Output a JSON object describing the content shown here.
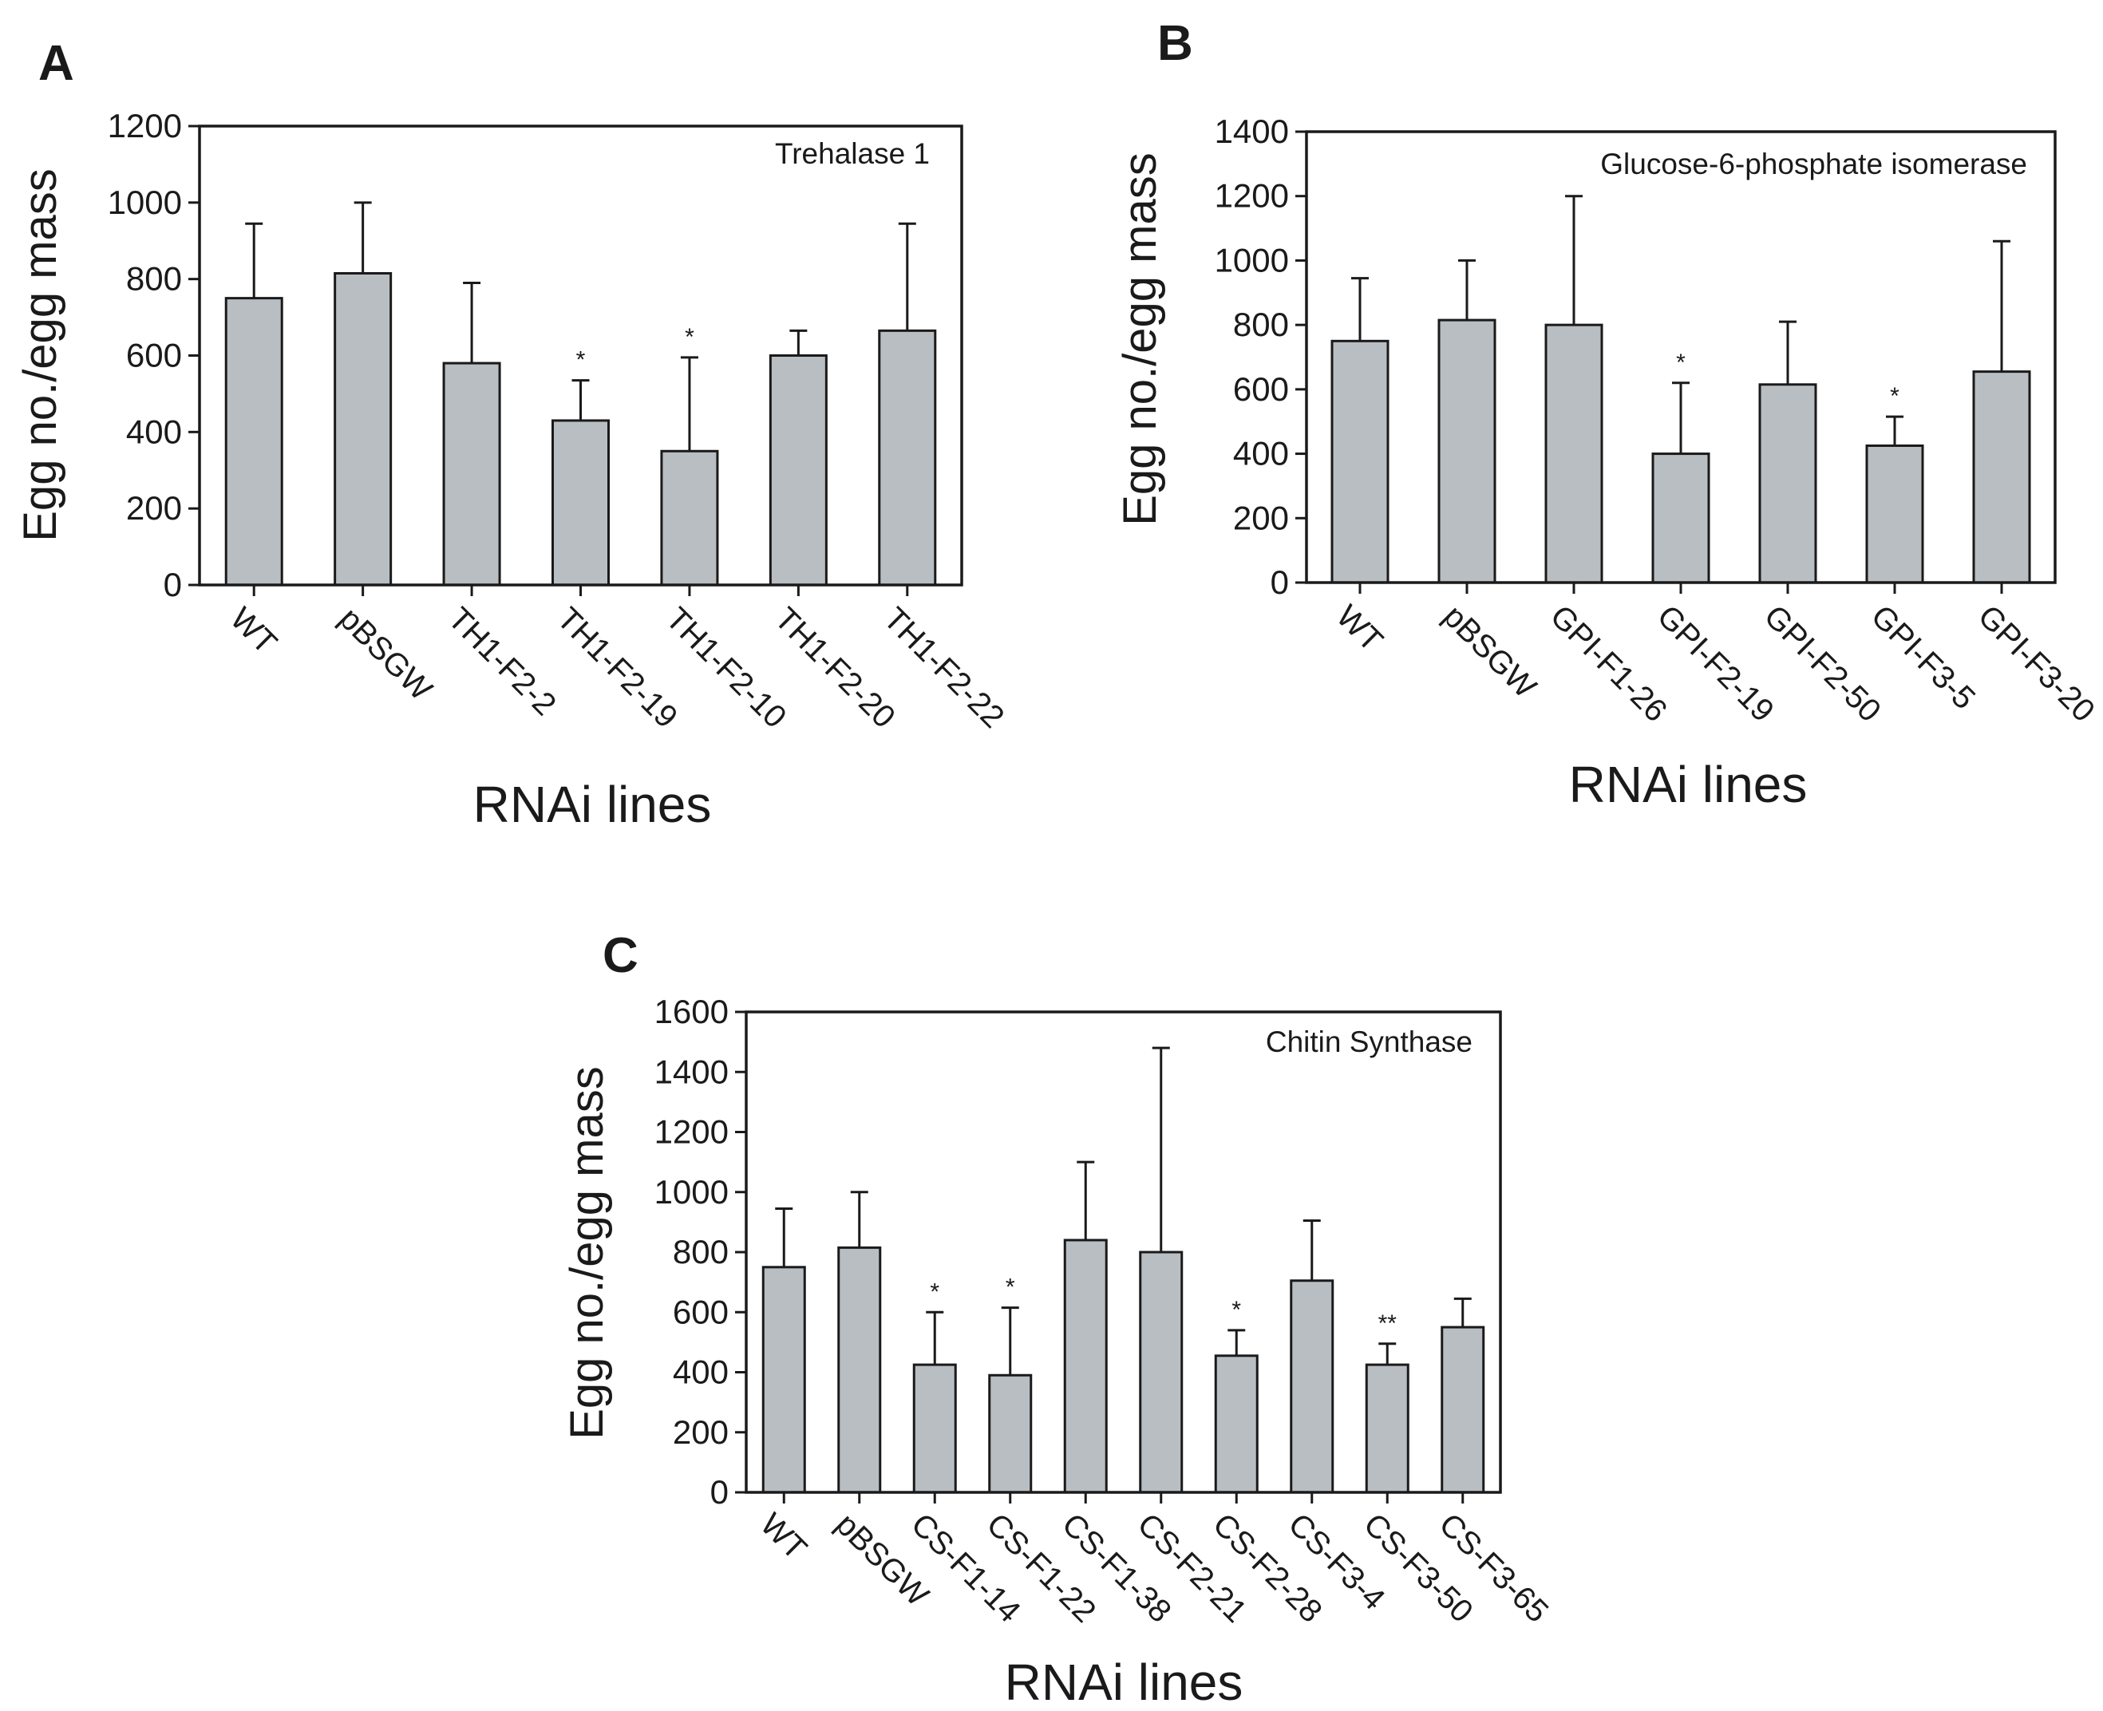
{
  "figure": {
    "x_axis_label": "RNAi lines",
    "y_axis_label": "Egg no./egg mass"
  },
  "chart_data": [
    {
      "panel": "A",
      "type": "bar",
      "title": "Trehalase 1",
      "xlabel": "RNAi lines",
      "ylabel": "Egg no./egg mass",
      "ylim": [
        0,
        1200
      ],
      "yticks": [
        0,
        200,
        400,
        600,
        800,
        1000,
        1200
      ],
      "categories": [
        "WT",
        "pBSGW",
        "TH1-F2-2",
        "TH1-F2-19",
        "TH1-F2-10",
        "TH1-F2-20",
        "TH1-F2-22"
      ],
      "values": [
        750,
        815,
        580,
        430,
        350,
        600,
        665
      ],
      "error_upper": [
        945,
        1000,
        790,
        535,
        595,
        665,
        945
      ],
      "significance": [
        "",
        "",
        "",
        "*",
        "*",
        "",
        ""
      ]
    },
    {
      "panel": "B",
      "type": "bar",
      "title": "Glucose-6-phosphate isomerase",
      "xlabel": "RNAi lines",
      "ylabel": "Egg no./egg mass",
      "ylim": [
        0,
        1400
      ],
      "yticks": [
        0,
        200,
        400,
        600,
        800,
        1000,
        1200,
        1400
      ],
      "categories": [
        "WT",
        "pBSGW",
        "GPI-F1-26",
        "GPI-F2-19",
        "GPI-F2-50",
        "GPI-F3-5",
        "GPI-F3-20"
      ],
      "values": [
        750,
        815,
        800,
        400,
        615,
        425,
        655
      ],
      "error_upper": [
        945,
        1000,
        1200,
        620,
        810,
        515,
        1060
      ],
      "significance": [
        "",
        "",
        "",
        "*",
        "",
        "*",
        ""
      ]
    },
    {
      "panel": "C",
      "type": "bar",
      "title": "Chitin Synthase",
      "xlabel": "RNAi lines",
      "ylabel": "Egg no./egg mass",
      "ylim": [
        0,
        1600
      ],
      "yticks": [
        0,
        200,
        400,
        600,
        800,
        1000,
        1200,
        1400,
        1600
      ],
      "categories": [
        "WT",
        "pBSGW",
        "CS-F1-14",
        "CS-F1-22",
        "CS-F1-38",
        "CS-F2-21",
        "CS-F2-28",
        "CS-F3-4",
        "CS-F3-50",
        "CS-F3-65"
      ],
      "values": [
        750,
        815,
        425,
        390,
        840,
        800,
        455,
        705,
        425,
        550
      ],
      "error_upper": [
        945,
        1000,
        600,
        615,
        1100,
        1480,
        540,
        905,
        495,
        645
      ],
      "significance": [
        "",
        "",
        "*",
        "*",
        "",
        "",
        "*",
        "",
        "**",
        ""
      ]
    }
  ]
}
